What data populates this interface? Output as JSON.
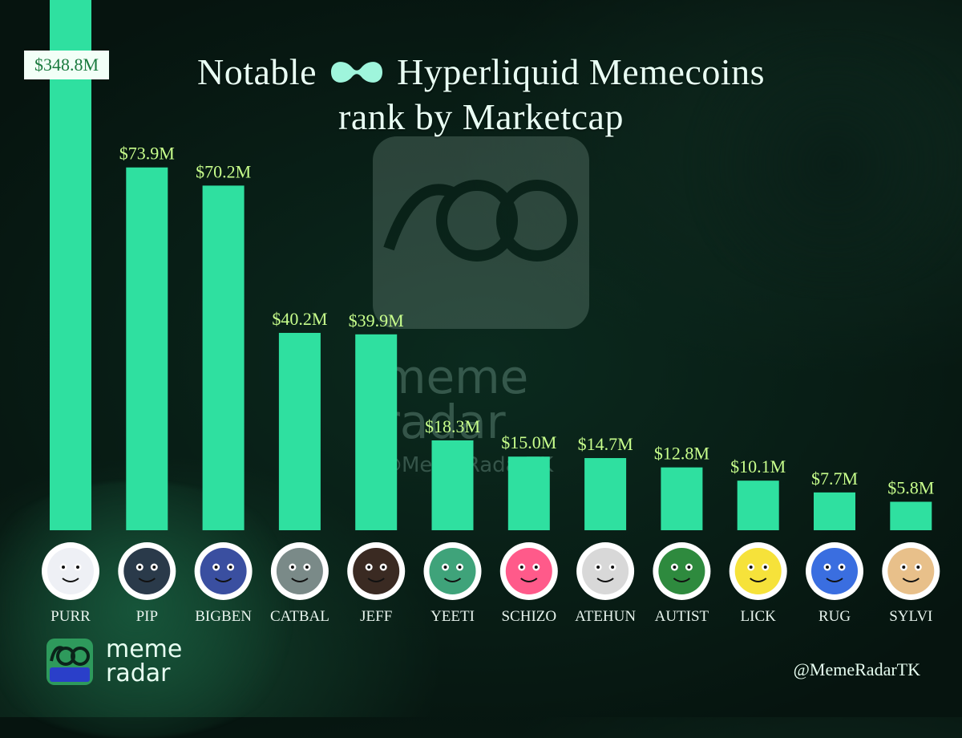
{
  "header": {
    "title_part1": "Notable",
    "title_part2": "Hyperliquid Memecoins",
    "subtitle": "rank by Marketcap"
  },
  "watermark": {
    "text_line1": "meme",
    "text_line2": "radar",
    "handle": "@MemeRadarTK"
  },
  "footer": {
    "brand_line1": "meme",
    "brand_line2": "radar",
    "handle": "@MemeRadarTK"
  },
  "colors": {
    "bar": "#2fe0a0",
    "value_label": "#c8ff8c",
    "first_label_bg": "#1a7a3e"
  },
  "chart_data": {
    "type": "bar",
    "title": "Notable Hyperliquid Memecoins rank by Marketcap",
    "xlabel": "",
    "ylabel": "",
    "unit": "$M",
    "categories": [
      "PURR",
      "PIP",
      "BIGBEN",
      "CATBAL",
      "JEFF",
      "YEETI",
      "SCHIZO",
      "ATEHUN",
      "AUTIST",
      "LICK",
      "RUG",
      "SYLVI"
    ],
    "values": [
      348.8,
      73.9,
      70.2,
      40.2,
      39.9,
      18.3,
      15.0,
      14.7,
      12.8,
      10.1,
      7.7,
      5.8
    ],
    "value_labels": [
      "$348.8M",
      "$73.9M",
      "$70.2M",
      "$40.2M",
      "$39.9M",
      "$18.3M",
      "$15.0M",
      "$14.7M",
      "$12.8M",
      "$10.1M",
      "$7.7M",
      "$5.8M"
    ],
    "icons": [
      "white-cat-icon",
      "ghost-creature-icon",
      "discord-clock-icon",
      "armored-cat-icon",
      "bearded-man-sunglasses-icon",
      "yeti-monkey-icon",
      "meme-man-rainbow-icon",
      "cap-man-icon",
      "autist-frog-icon",
      "yellow-dog-icon",
      "blue-smiley-icon",
      "puppy-icon"
    ],
    "icon_colors": [
      "#eef0f5",
      "#2a3a4a",
      "#3a4fa0",
      "#7a8a88",
      "#3a2a22",
      "#3fa37a",
      "#ff5a8a",
      "#d8d8d8",
      "#2e8a3e",
      "#f6e23a",
      "#3a6ee0",
      "#e8c08a"
    ],
    "grid": false,
    "legend": "none"
  }
}
